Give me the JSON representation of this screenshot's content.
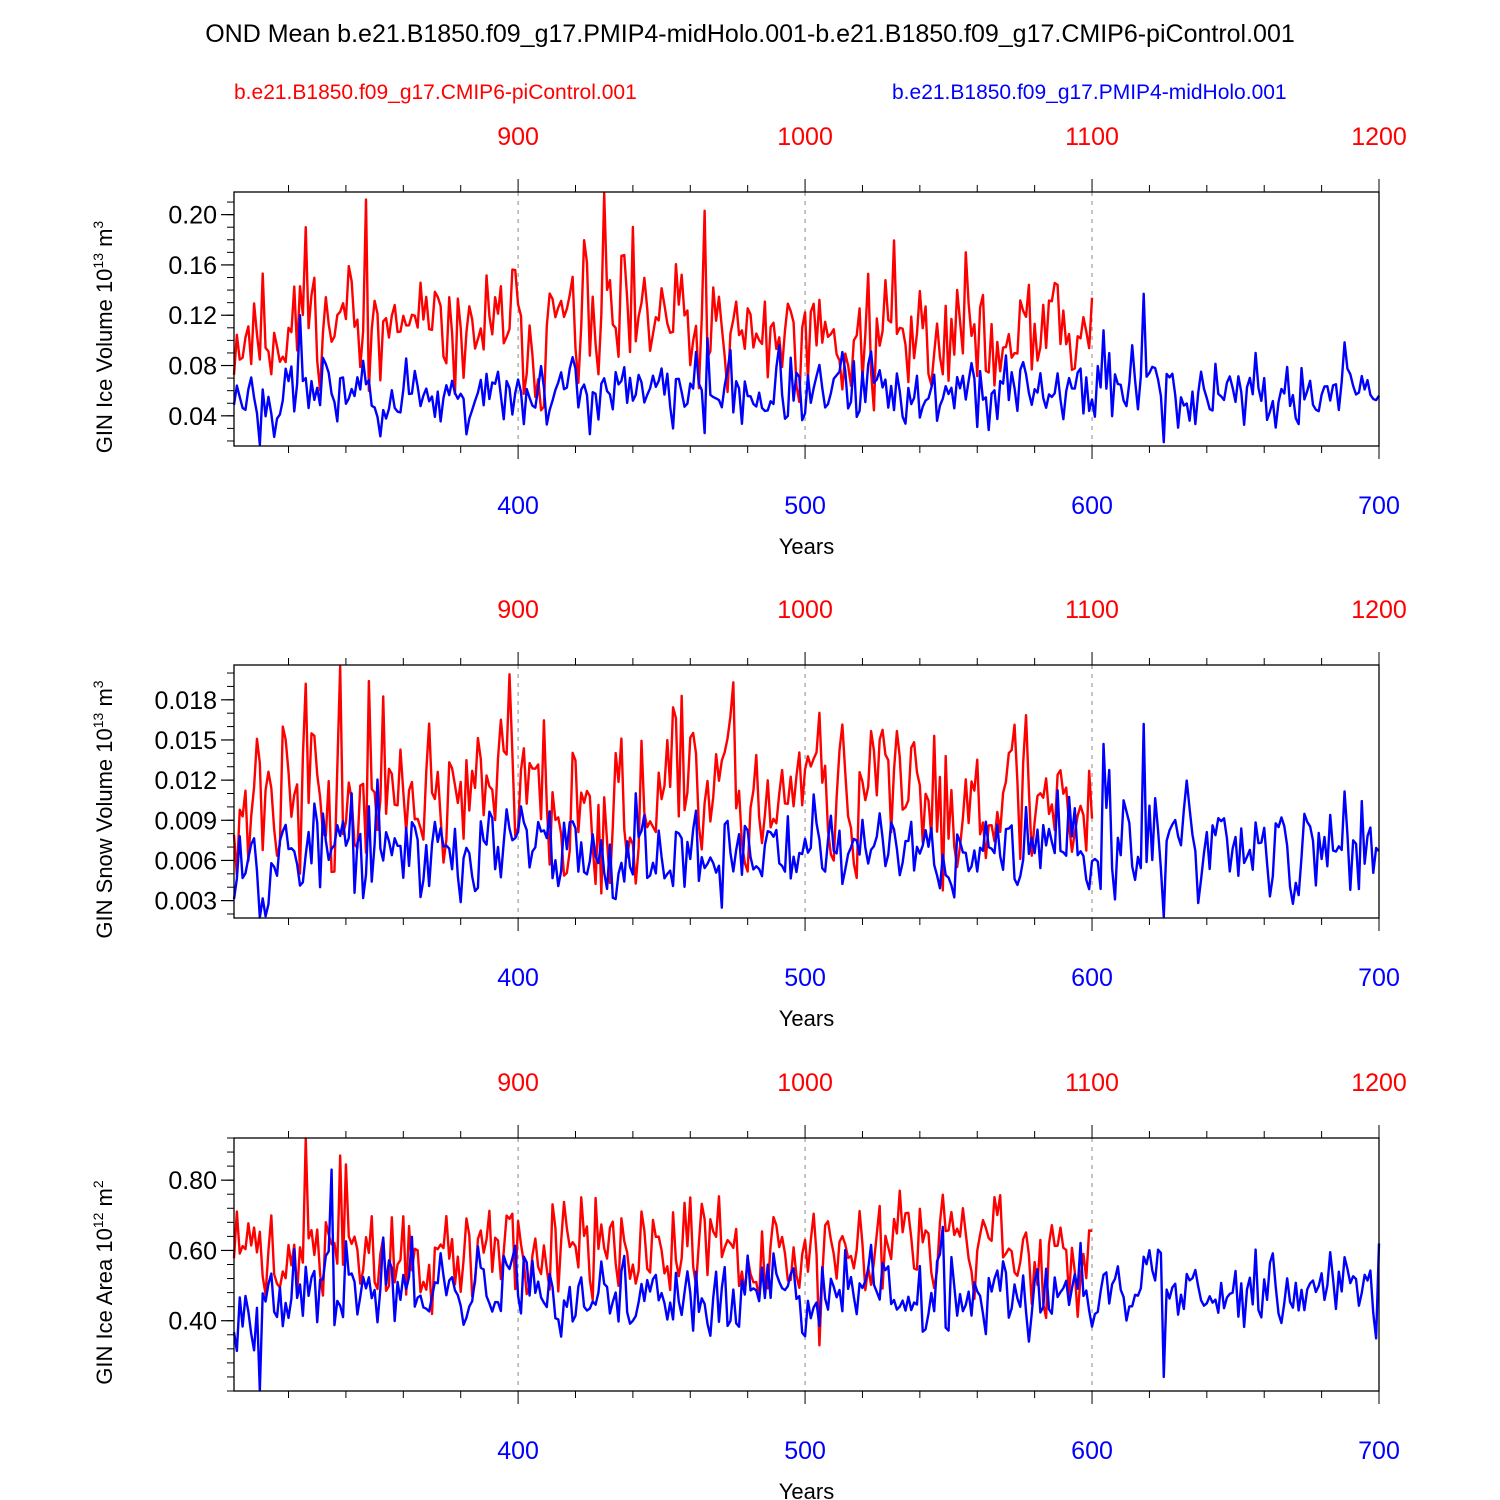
{
  "title": "OND Mean b.e21.B1850.f09_g17.PMIP4-midHolo.001-b.e21.B1850.f09_g17.CMIP6-piControl.001",
  "colors": {
    "control": "#ff0000",
    "holo": "#0000ff",
    "axis": "#000000",
    "grid": "#888888"
  },
  "chart_data": [
    {
      "type": "line",
      "title": "",
      "ylabel": "GIN Ice Volume 10",
      "ylabel_exp": "13",
      "ylabel_unit": " m",
      "ylabel_unit_exp": "3",
      "xlabel": "Years",
      "ylim": [
        0.016,
        0.218
      ],
      "yticks": [
        0.04,
        0.08,
        0.12,
        0.16,
        0.2
      ],
      "yticklabels": [
        "0.04",
        "0.08",
        "0.12",
        "0.16",
        "0.20"
      ],
      "yminor": 0.01,
      "x_bottom": {
        "range": [
          301,
          700
        ],
        "ticks": [
          400,
          500,
          600,
          700
        ],
        "labels": [
          "400",
          "500",
          "600",
          "700"
        ],
        "minor": 20
      },
      "x_top": {
        "range": [
          801,
          1200
        ],
        "ticks": [
          900,
          1000,
          1100,
          1200
        ],
        "labels": [
          "900",
          "1000",
          "1100",
          "1200"
        ]
      },
      "gridlines_x": [
        400,
        500,
        600
      ],
      "series": [
        {
          "name": "b.e21.B1850.f09_g17.CMIP6-piControl.001",
          "axis": "top",
          "color": "#ff0000",
          "start": 801,
          "end": 1100,
          "mean": 0.105,
          "amp": 0.032,
          "seed": 11,
          "peak_at": [
            [
              826,
              0.19
            ],
            [
              847,
              0.212
            ],
            [
              930,
              0.217
            ],
            [
              965,
              0.203
            ]
          ]
        },
        {
          "name": "b.e21.B1850.f09_g17.PMIP4-midHolo.001",
          "axis": "bottom",
          "color": "#0000ff",
          "start": 301,
          "end": 700,
          "mean": 0.058,
          "amp": 0.018,
          "seed": 23,
          "peak_at": [
            [
              310,
              0.017
            ],
            [
              324,
              0.12
            ],
            [
              618,
              0.137
            ],
            [
              625,
              0.019
            ],
            [
              604,
              0.108
            ]
          ]
        }
      ]
    },
    {
      "type": "line",
      "title": "",
      "ylabel": "GIN Snow Volume 10",
      "ylabel_exp": "13",
      "ylabel_unit": " m",
      "ylabel_unit_exp": "3",
      "xlabel": "Years",
      "ylim": [
        0.0017,
        0.0206
      ],
      "yticks": [
        0.003,
        0.006,
        0.009,
        0.012,
        0.015,
        0.018
      ],
      "yticklabels": [
        "0.003",
        "0.006",
        "0.009",
        "0.012",
        "0.015",
        "0.018"
      ],
      "yminor": 0.001,
      "x_bottom": {
        "range": [
          301,
          700
        ],
        "ticks": [
          400,
          500,
          600,
          700
        ],
        "labels": [
          "400",
          "500",
          "600",
          "700"
        ],
        "minor": 20
      },
      "x_top": {
        "range": [
          801,
          1200
        ],
        "ticks": [
          900,
          1000,
          1100,
          1200
        ],
        "labels": [
          "900",
          "1000",
          "1100",
          "1200"
        ]
      },
      "gridlines_x": [
        400,
        500,
        600
      ],
      "series": [
        {
          "name": "b.e21.B1850.f09_g17.CMIP6-piControl.001",
          "axis": "top",
          "color": "#ff0000",
          "start": 801,
          "end": 1100,
          "mean": 0.0105,
          "amp": 0.0035,
          "seed": 37,
          "peak_at": [
            [
              826,
              0.0192
            ],
            [
              838,
              0.0205
            ],
            [
              848,
              0.0194
            ],
            [
              897,
              0.0199
            ],
            [
              957,
              0.0183
            ]
          ]
        },
        {
          "name": "b.e21.B1850.f09_g17.PMIP4-midHolo.001",
          "axis": "bottom",
          "color": "#0000ff",
          "start": 301,
          "end": 700,
          "mean": 0.0068,
          "amp": 0.0022,
          "seed": 53,
          "peak_at": [
            [
              310,
              0.0017
            ],
            [
              618,
              0.0162
            ],
            [
              625,
              0.0018
            ],
            [
              604,
              0.0147
            ]
          ]
        }
      ]
    },
    {
      "type": "line",
      "title": "",
      "ylabel": "GIN Ice Area 10",
      "ylabel_exp": "12",
      "ylabel_unit": " m",
      "ylabel_unit_exp": "2",
      "xlabel": "Years",
      "ylim": [
        0.2,
        0.92
      ],
      "yticks": [
        0.4,
        0.6,
        0.8
      ],
      "yticklabels": [
        "0.40",
        "0.60",
        "0.80"
      ],
      "yminor": 0.04,
      "x_bottom": {
        "range": [
          301,
          700
        ],
        "ticks": [
          400,
          500,
          600,
          700
        ],
        "labels": [
          "400",
          "500",
          "600",
          "700"
        ],
        "minor": 20
      },
      "x_top": {
        "range": [
          801,
          1200
        ],
        "ticks": [
          900,
          1000,
          1100,
          1200
        ],
        "labels": [
          "900",
          "1000",
          "1100",
          "1200"
        ]
      },
      "gridlines_x": [
        400,
        500,
        600
      ],
      "series": [
        {
          "name": "b.e21.B1850.f09_g17.CMIP6-piControl.001",
          "axis": "top",
          "color": "#ff0000",
          "start": 801,
          "end": 1100,
          "mean": 0.59,
          "amp": 0.09,
          "seed": 71,
          "peak_at": [
            [
              826,
              0.92
            ],
            [
              838,
              0.87
            ],
            [
              1000,
              0.63
            ],
            [
              1005,
              0.33
            ]
          ]
        },
        {
          "name": "b.e21.B1850.f09_g17.PMIP4-midHolo.001",
          "axis": "bottom",
          "color": "#0000ff",
          "start": 301,
          "end": 700,
          "mean": 0.47,
          "amp": 0.07,
          "seed": 97,
          "peak_at": [
            [
              310,
              0.2
            ],
            [
              335,
              0.83
            ],
            [
              625,
              0.24
            ],
            [
              700,
              0.62
            ]
          ]
        }
      ]
    }
  ],
  "legend": {
    "control": "b.e21.B1850.f09_g17.CMIP6-piControl.001",
    "holo": "b.e21.B1850.f09_g17.PMIP4-midHolo.001"
  }
}
